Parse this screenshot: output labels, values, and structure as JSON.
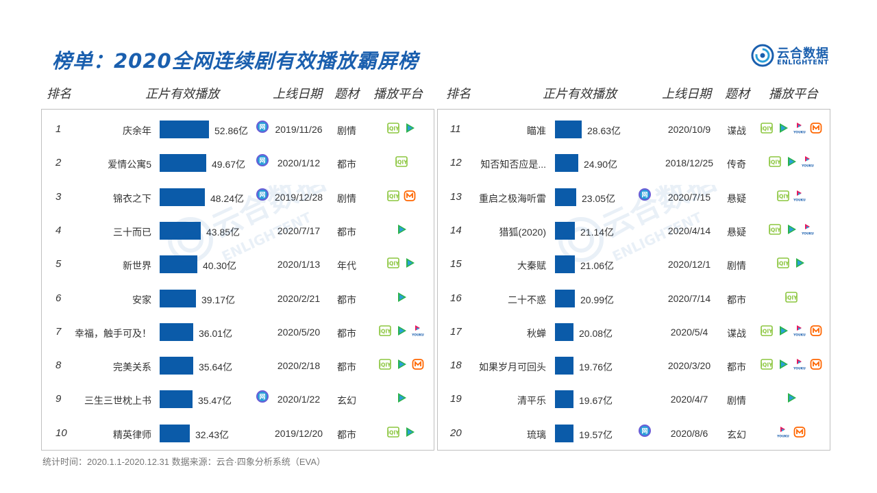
{
  "title": "榜单：2020全网连续剧有效播放霸屏榜",
  "logo": {
    "cn": "云合数据",
    "en": "ENLIGHTENT"
  },
  "headers": {
    "rank": "排名",
    "plays": "正片有效播放",
    "date": "上线日期",
    "genre": "题材",
    "platform": "播放平台"
  },
  "watermark": {
    "cn": "云合数据",
    "en": "ENLIGHTENT"
  },
  "colors": {
    "bar": "#0b5ba9",
    "title": "#1a5fae",
    "iqiyi": "#8cc63f",
    "tencent": "#2bb24c",
    "youku": "#e8175d",
    "mango": "#ff6600",
    "network": "#6b5bd6"
  },
  "left": [
    {
      "rank": "1",
      "name": "庆余年",
      "value": "52.86亿",
      "plays": 52.86,
      "date": "2019/11/26",
      "genre": "剧情",
      "network": true,
      "platforms": [
        "iqiyi-icon",
        "tencent-icon"
      ]
    },
    {
      "rank": "2",
      "name": "爱情公寓5",
      "value": "49.67亿",
      "plays": 49.67,
      "date": "2020/1/12",
      "genre": "都市",
      "network": true,
      "platforms": [
        "iqiyi-icon"
      ]
    },
    {
      "rank": "3",
      "name": "锦衣之下",
      "value": "48.24亿",
      "plays": 48.24,
      "date": "2019/12/28",
      "genre": "剧情",
      "network": true,
      "platforms": [
        "iqiyi-icon",
        "mango-icon"
      ]
    },
    {
      "rank": "4",
      "name": "三十而已",
      "value": "43.85亿",
      "plays": 43.85,
      "date": "2020/7/17",
      "genre": "都市",
      "network": false,
      "platforms": [
        "tencent-icon"
      ]
    },
    {
      "rank": "5",
      "name": "新世界",
      "value": "40.30亿",
      "plays": 40.3,
      "date": "2020/1/13",
      "genre": "年代",
      "network": false,
      "platforms": [
        "iqiyi-icon",
        "tencent-icon"
      ]
    },
    {
      "rank": "6",
      "name": "安家",
      "value": "39.17亿",
      "plays": 39.17,
      "date": "2020/2/21",
      "genre": "都市",
      "network": false,
      "platforms": [
        "tencent-icon"
      ]
    },
    {
      "rank": "7",
      "name": "幸福，触手可及！",
      "value": "36.01亿",
      "plays": 36.01,
      "date": "2020/5/20",
      "genre": "都市",
      "network": false,
      "platforms": [
        "iqiyi-icon",
        "tencent-icon",
        "youku-icon"
      ]
    },
    {
      "rank": "8",
      "name": "完美关系",
      "value": "35.64亿",
      "plays": 35.64,
      "date": "2020/2/18",
      "genre": "都市",
      "network": false,
      "platforms": [
        "iqiyi-icon",
        "tencent-icon",
        "mango-icon"
      ]
    },
    {
      "rank": "9",
      "name": "三生三世枕上书",
      "value": "35.47亿",
      "plays": 35.47,
      "date": "2020/1/22",
      "genre": "玄幻",
      "network": true,
      "platforms": [
        "tencent-icon"
      ]
    },
    {
      "rank": "10",
      "name": "精英律师",
      "value": "32.43亿",
      "plays": 32.43,
      "date": "2019/12/20",
      "genre": "都市",
      "network": false,
      "platforms": [
        "iqiyi-icon",
        "tencent-icon"
      ]
    }
  ],
  "right": [
    {
      "rank": "11",
      "name": "瞄准",
      "value": "28.63亿",
      "plays": 28.63,
      "date": "2020/10/9",
      "genre": "谍战",
      "network": false,
      "platforms": [
        "iqiyi-icon",
        "tencent-icon",
        "youku-icon",
        "mango-icon"
      ]
    },
    {
      "rank": "12",
      "name": "知否知否应是...",
      "value": "24.90亿",
      "plays": 24.9,
      "date": "2018/12/25",
      "genre": "传奇",
      "network": false,
      "platforms": [
        "iqiyi-icon",
        "tencent-icon",
        "youku-icon"
      ]
    },
    {
      "rank": "13",
      "name": "重启之极海听雷",
      "value": "23.05亿",
      "plays": 23.05,
      "date": "2020/7/15",
      "genre": "悬疑",
      "network": true,
      "platforms": [
        "iqiyi-icon",
        "youku-icon"
      ]
    },
    {
      "rank": "14",
      "name": "猎狐(2020)",
      "value": "21.14亿",
      "plays": 21.14,
      "date": "2020/4/14",
      "genre": "悬疑",
      "network": false,
      "platforms": [
        "iqiyi-icon",
        "tencent-icon",
        "youku-icon"
      ]
    },
    {
      "rank": "15",
      "name": "大秦赋",
      "value": "21.06亿",
      "plays": 21.06,
      "date": "2020/12/1",
      "genre": "剧情",
      "network": false,
      "platforms": [
        "iqiyi-icon",
        "tencent-icon"
      ]
    },
    {
      "rank": "16",
      "name": "二十不惑",
      "value": "20.99亿",
      "plays": 20.99,
      "date": "2020/7/14",
      "genre": "都市",
      "network": false,
      "platforms": [
        "iqiyi-icon"
      ]
    },
    {
      "rank": "17",
      "name": "秋蝉",
      "value": "20.08亿",
      "plays": 20.08,
      "date": "2020/5/4",
      "genre": "谍战",
      "network": false,
      "platforms": [
        "iqiyi-icon",
        "tencent-icon",
        "youku-icon",
        "mango-icon"
      ]
    },
    {
      "rank": "18",
      "name": "如果岁月可回头",
      "value": "19.76亿",
      "plays": 19.76,
      "date": "2020/3/20",
      "genre": "都市",
      "network": false,
      "platforms": [
        "iqiyi-icon",
        "tencent-icon",
        "youku-icon",
        "mango-icon"
      ]
    },
    {
      "rank": "19",
      "name": "清平乐",
      "value": "19.67亿",
      "plays": 19.67,
      "date": "2020/4/7",
      "genre": "剧情",
      "network": false,
      "platforms": [
        "tencent-icon"
      ]
    },
    {
      "rank": "20",
      "name": "琉璃",
      "value": "19.57亿",
      "plays": 19.57,
      "date": "2020/8/6",
      "genre": "玄幻",
      "network": true,
      "platforms": [
        "youku-icon",
        "mango-icon"
      ]
    }
  ],
  "footer": "统计时间：2020.1.1-2020.12.31    数据来源：云合·四象分析系统（EVA）"
}
